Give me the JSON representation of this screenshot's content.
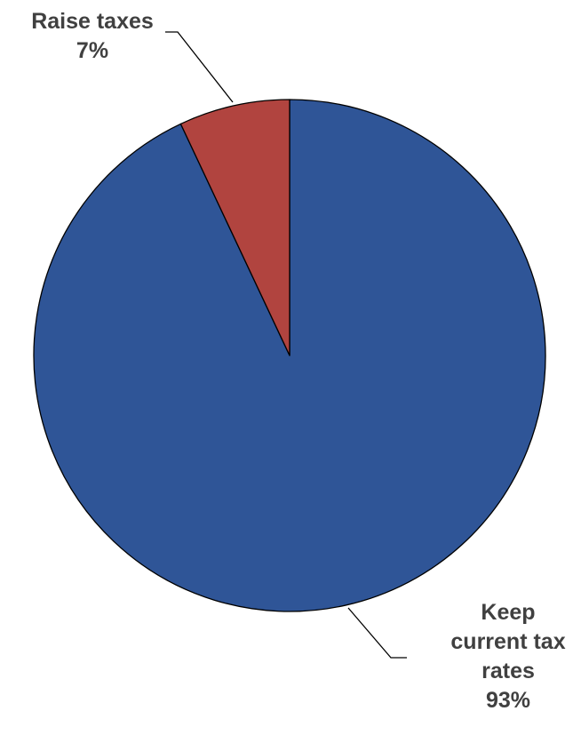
{
  "chart_data": {
    "type": "pie",
    "slices": [
      {
        "label": "Keep current tax rates",
        "label_lines": [
          "Keep",
          "current tax",
          "rates"
        ],
        "value": 93,
        "value_label": "93%",
        "color": "#2F5597"
      },
      {
        "label": "Raise taxes",
        "label_lines": [
          "Raise taxes"
        ],
        "value": 7,
        "value_label": "7%",
        "color": "#B1443F"
      }
    ],
    "start_angle_deg": 0,
    "direction": "clockwise",
    "title": "",
    "legend": "none",
    "border_color": "#000000"
  }
}
